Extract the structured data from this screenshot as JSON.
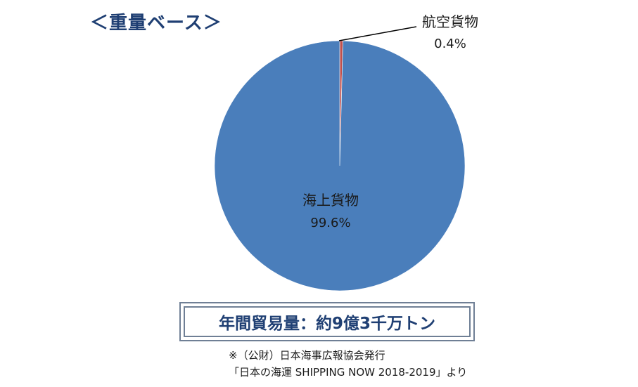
{
  "heading": "＜重量ベース＞",
  "chart_data": {
    "type": "pie",
    "title": "",
    "categories": [
      "海上貨物",
      "航空貨物"
    ],
    "values": [
      99.6,
      0.4
    ],
    "value_labels": [
      "99.6%",
      "0.4%"
    ],
    "unit": "%",
    "colors": [
      "#4a7ebb",
      "#c0504d"
    ],
    "legend": "none"
  },
  "total_label": "年間貿易量：約9億3千万トン",
  "source": {
    "line1": "※（公財）日本海事広報協会発行",
    "line2": "「日本の海運 SHIPPING NOW 2018-2019」より"
  }
}
